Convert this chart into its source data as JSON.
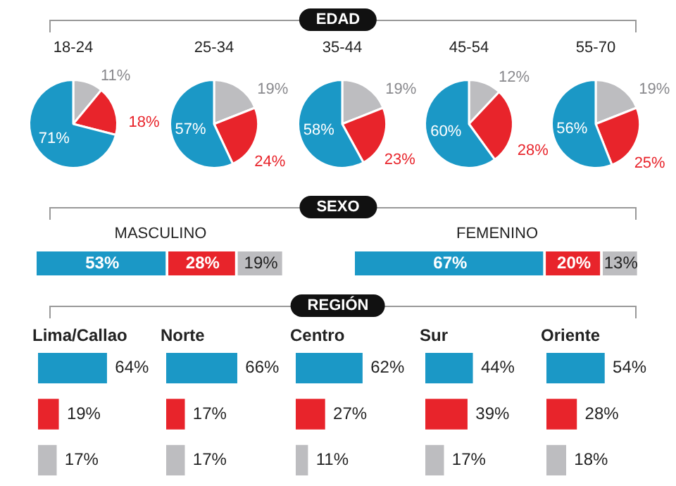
{
  "chart_data": [
    {
      "type": "pie",
      "title": "18-24",
      "annotations": [
        "EDAD"
      ],
      "categories": [
        null,
        null,
        null
      ],
      "values": [
        11,
        18,
        71
      ],
      "colors": [
        "#bdbdc0",
        "#e8242b",
        "#1b98c6"
      ],
      "value_labels": [
        "11%",
        "18%",
        "71%"
      ]
    },
    {
      "type": "pie",
      "title": "25-34",
      "categories": [
        null,
        null,
        null
      ],
      "values": [
        19,
        24,
        57
      ],
      "colors": [
        "#bdbdc0",
        "#e8242b",
        "#1b98c6"
      ],
      "value_labels": [
        "19%",
        "24%",
        "57%"
      ]
    },
    {
      "type": "pie",
      "title": "35-44",
      "categories": [
        null,
        null,
        null
      ],
      "values": [
        19,
        23,
        58
      ],
      "colors": [
        "#bdbdc0",
        "#e8242b",
        "#1b98c6"
      ],
      "value_labels": [
        "19%",
        "23%",
        "58%"
      ]
    },
    {
      "type": "pie",
      "title": "45-54",
      "categories": [
        null,
        null,
        null
      ],
      "values": [
        12,
        28,
        60
      ],
      "colors": [
        "#bdbdc0",
        "#e8242b",
        "#1b98c6"
      ],
      "value_labels": [
        "12%",
        "28%",
        "60%"
      ]
    },
    {
      "type": "pie",
      "title": "55-70",
      "categories": [
        null,
        null,
        null
      ],
      "values": [
        19,
        25,
        56
      ],
      "colors": [
        "#bdbdc0",
        "#e8242b",
        "#1b98c6"
      ],
      "value_labels": [
        "19%",
        "25%",
        "56%"
      ]
    },
    {
      "type": "bar",
      "title": "MASCULINO",
      "annotations": [
        "SEXO"
      ],
      "orientation": "horizontal",
      "stacked": true,
      "tick_labels": false,
      "xlim": [
        0,
        100
      ],
      "categories": [
        null
      ],
      "series": [
        {
          "color": "#1b98c6",
          "values": [
            53
          ],
          "value_labels": [
            "53%"
          ]
        },
        {
          "color": "#e8242b",
          "values": [
            28
          ],
          "value_labels": [
            "28%"
          ]
        },
        {
          "color": "#bdbdc0",
          "values": [
            19
          ],
          "value_labels": [
            "19%"
          ]
        }
      ]
    },
    {
      "type": "bar",
      "title": "FEMENINO",
      "orientation": "horizontal",
      "stacked": true,
      "tick_labels": false,
      "xlim": [
        0,
        100
      ],
      "categories": [
        null
      ],
      "series": [
        {
          "color": "#1b98c6",
          "values": [
            67
          ],
          "value_labels": [
            "67%"
          ]
        },
        {
          "color": "#e8242b",
          "values": [
            20
          ],
          "value_labels": [
            "20%"
          ]
        },
        {
          "color": "#bdbdc0",
          "values": [
            13
          ],
          "value_labels": [
            "13%"
          ]
        }
      ]
    },
    {
      "type": "bar",
      "title": "Lima/Callao",
      "annotations": [
        "REGIÓN"
      ],
      "orientation": "horizontal",
      "tick_labels": false,
      "categories": [
        null,
        null,
        null
      ],
      "values": [
        64,
        19,
        17
      ],
      "colors": [
        "#1b98c6",
        "#e8242b",
        "#bdbdc0"
      ],
      "value_labels": [
        "64%",
        "19%",
        "17%"
      ]
    },
    {
      "type": "bar",
      "title": "Norte",
      "orientation": "horizontal",
      "tick_labels": false,
      "categories": [
        null,
        null,
        null
      ],
      "values": [
        66,
        17,
        17
      ],
      "colors": [
        "#1b98c6",
        "#e8242b",
        "#bdbdc0"
      ],
      "value_labels": [
        "66%",
        "17%",
        "17%"
      ]
    },
    {
      "type": "bar",
      "title": "Centro",
      "orientation": "horizontal",
      "tick_labels": false,
      "categories": [
        null,
        null,
        null
      ],
      "values": [
        62,
        27,
        11
      ],
      "colors": [
        "#1b98c6",
        "#e8242b",
        "#bdbdc0"
      ],
      "value_labels": [
        "62%",
        "27%",
        "11%"
      ]
    },
    {
      "type": "bar",
      "title": "Sur",
      "orientation": "horizontal",
      "tick_labels": false,
      "categories": [
        null,
        null,
        null
      ],
      "values": [
        44,
        39,
        17
      ],
      "colors": [
        "#1b98c6",
        "#e8242b",
        "#bdbdc0"
      ],
      "value_labels": [
        "44%",
        "39%",
        "17%"
      ]
    },
    {
      "type": "bar",
      "title": "Oriente",
      "orientation": "horizontal",
      "tick_labels": false,
      "categories": [
        null,
        null,
        null
      ],
      "values": [
        54,
        28,
        18
      ],
      "colors": [
        "#1b98c6",
        "#e8242b",
        "#bdbdc0"
      ],
      "value_labels": [
        "54%",
        "28%",
        "18%"
      ]
    }
  ]
}
